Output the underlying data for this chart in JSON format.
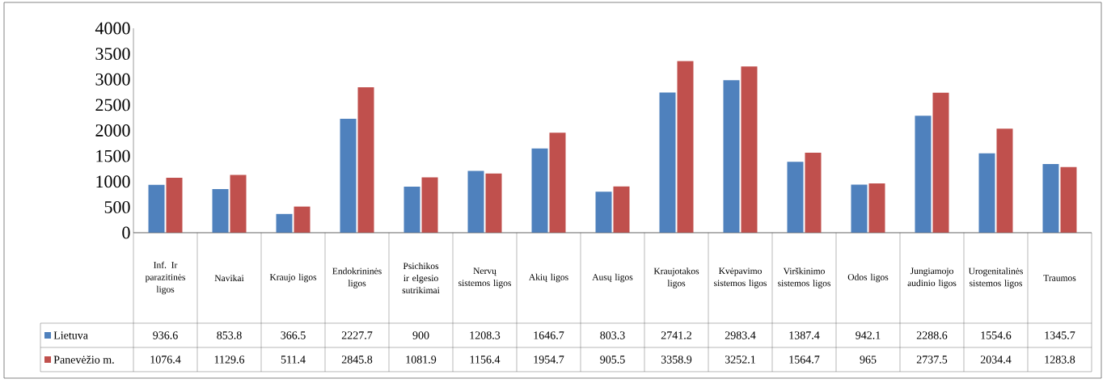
{
  "chart_data": {
    "type": "bar",
    "categories": [
      "Inf. Ir parazitinės ligos",
      "Navikai",
      "Kraujo ligos",
      "Endokrininės ligos",
      "Psichikos ir elgesio sutrikimai",
      "Nervų sistemos ligos",
      "Akių ligos",
      "Ausų ligos",
      "Kraujotakos ligos",
      "Kvėpavimo sistemos ligos",
      "Virškinimo sistemos ligos",
      "Odos ligos",
      "Jungiamojo audinio ligos",
      "Urogenitalinės sistemos ligos",
      "Traumos"
    ],
    "series": [
      {
        "name": "Lietuva",
        "color": "#4f81bd",
        "values": [
          936.6,
          853.8,
          366.5,
          2227.7,
          900,
          1208.3,
          1646.7,
          803.3,
          2741.2,
          2983.4,
          1387.4,
          942.1,
          2288.6,
          1554.6,
          1345.7
        ]
      },
      {
        "name": "Panevėžio m.",
        "color": "#c0504d",
        "values": [
          1076.4,
          1129.6,
          511.4,
          2845.8,
          1081.9,
          1156.4,
          1954.7,
          905.5,
          3358.9,
          3252.1,
          1564.7,
          965,
          2737.5,
          2034.4,
          1283.8
        ]
      }
    ],
    "ylim": [
      0,
      4000
    ],
    "yticks": [
      0,
      500,
      1000,
      1500,
      2000,
      2500,
      3000,
      3500,
      4000
    ],
    "legend": "bottom",
    "data_labels": true
  }
}
